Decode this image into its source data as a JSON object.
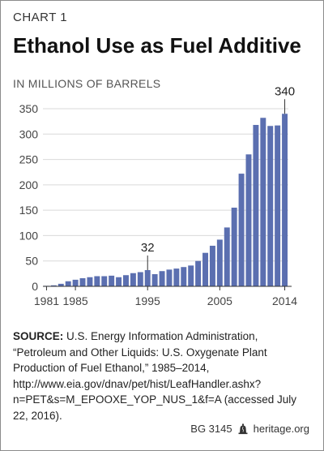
{
  "header": {
    "kicker": "CHART 1",
    "title": "Ethanol Use as Fuel Additive"
  },
  "chart_data": {
    "type": "bar",
    "title": "Ethanol Use as Fuel Additive",
    "ylabel": "IN MILLIONS OF BARRELS",
    "xlabel": "",
    "ylim": [
      0,
      350
    ],
    "yticks": [
      0,
      50,
      100,
      150,
      200,
      250,
      300,
      350
    ],
    "xticks": [
      "1981",
      "1985",
      "1995",
      "2005",
      "2014"
    ],
    "grid": true,
    "bar_color": "#5b6fb0",
    "categories": [
      "1981",
      "1982",
      "1983",
      "1984",
      "1985",
      "1986",
      "1987",
      "1988",
      "1989",
      "1990",
      "1991",
      "1992",
      "1993",
      "1994",
      "1995",
      "1996",
      "1997",
      "1998",
      "1999",
      "2000",
      "2001",
      "2002",
      "2003",
      "2004",
      "2005",
      "2006",
      "2007",
      "2008",
      "2009",
      "2010",
      "2011",
      "2012",
      "2013",
      "2014"
    ],
    "values": [
      1,
      2,
      5,
      10,
      13,
      16,
      18,
      20,
      20,
      21,
      18,
      22,
      26,
      28,
      32,
      24,
      30,
      33,
      35,
      38,
      41,
      50,
      66,
      80,
      92,
      116,
      155,
      222,
      260,
      318,
      332,
      316,
      317,
      340
    ],
    "annotations": [
      {
        "category": "1995",
        "label": "32"
      },
      {
        "category": "2014",
        "label": "340"
      }
    ]
  },
  "source": {
    "lead": "SOURCE:",
    "text": " U.S. Energy Information Administration, “Petroleum and Other Liquids: U.S. Oxygenate Plant Production of Fuel Ethanol,” 1985–2014, http://www.eia.gov/dnav/pet/hist/LeafHandler.ashx?n=PET&s=M_EPOOXE_YOP_NUS_1&f=A (accessed July 22, 2016)."
  },
  "footer": {
    "code": "BG 3145",
    "site": "heritage.org",
    "icon": "liberty-bell-icon"
  }
}
